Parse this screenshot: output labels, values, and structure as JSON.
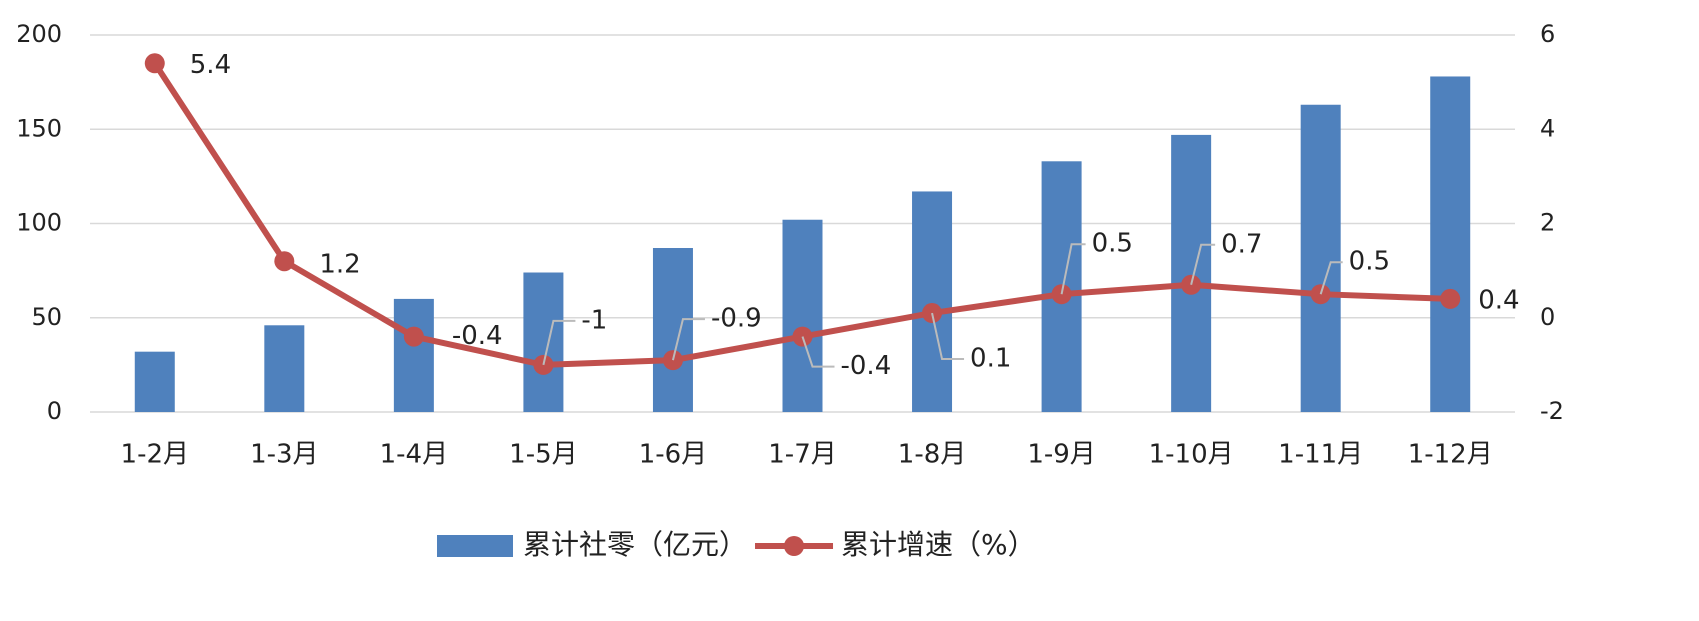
{
  "chart_data": {
    "type": "bar-line",
    "categories": [
      "1-2月",
      "1-3月",
      "1-4月",
      "1-5月",
      "1-6月",
      "1-7月",
      "1-8月",
      "1-9月",
      "1-10月",
      "1-11月",
      "1-12月"
    ],
    "series": [
      {
        "name": "累计社零（亿元）",
        "type": "bar",
        "color": "#4f81bd",
        "values": [
          32,
          46,
          60,
          74,
          87,
          102,
          117,
          133,
          147,
          163,
          178
        ]
      },
      {
        "name": "累计增速（%）",
        "type": "line",
        "axis": "y2",
        "color": "#c0504d",
        "values": [
          5.4,
          1.2,
          -0.4,
          -1,
          -0.9,
          -0.4,
          0.1,
          0.5,
          0.7,
          0.5,
          0.4
        ]
      }
    ],
    "ylim": [
      0,
      200
    ],
    "yticks": [
      0,
      50,
      100,
      150,
      200
    ],
    "y2lim": [
      -2,
      6
    ],
    "y2ticks": [
      -2,
      0,
      2,
      4,
      6
    ],
    "grid": true
  }
}
